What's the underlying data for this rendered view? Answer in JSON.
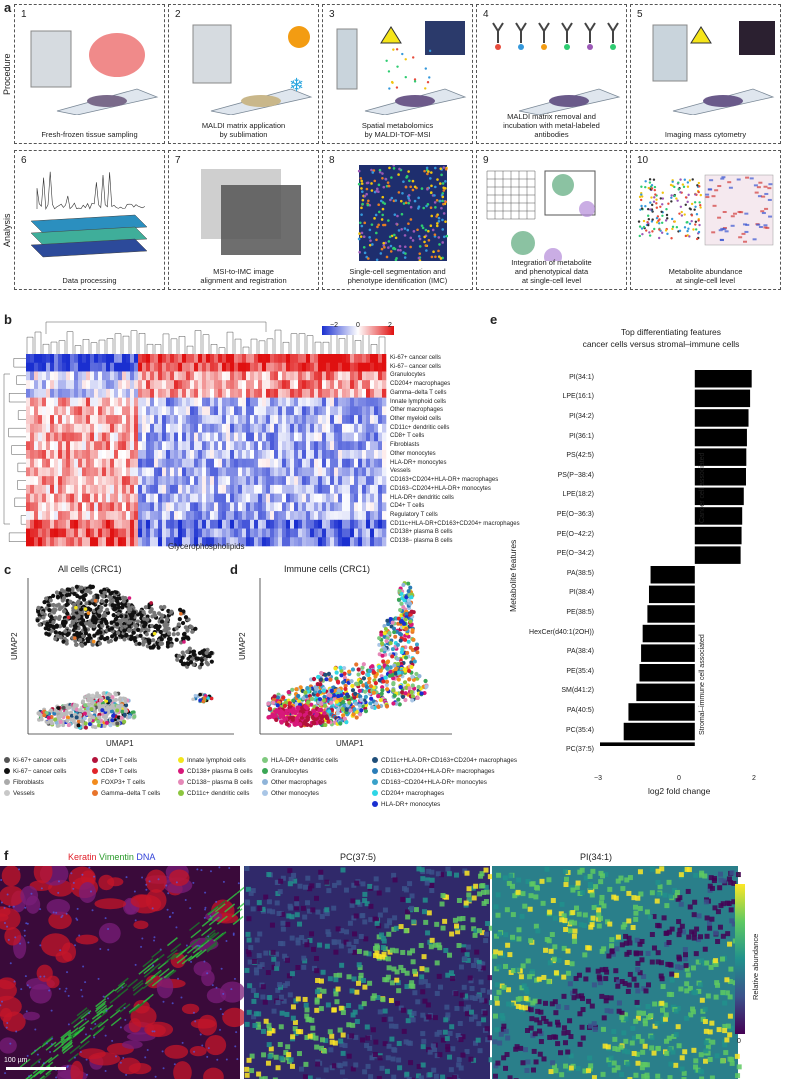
{
  "panel_a": {
    "letter": "a",
    "row_labels": [
      "Procedure",
      "Analysis"
    ],
    "steps": [
      {
        "n": "1",
        "caption": "Fresh-frozen tissue sampling"
      },
      {
        "n": "2",
        "caption": "MALDI matrix application\nby sublimation"
      },
      {
        "n": "3",
        "caption": "Spatial metabolomics\nby MALDI-TOF-MSI"
      },
      {
        "n": "4",
        "caption": "MALDI matrix removal and\nincubation with metal-labeled\nantibodies"
      },
      {
        "n": "5",
        "caption": "Imaging mass cytometry"
      },
      {
        "n": "6",
        "caption": "Data processing"
      },
      {
        "n": "7",
        "caption": "MSI-to-IMC image\nalignment and registration"
      },
      {
        "n": "8",
        "caption": "Single-cell segmentation and\nphenotype identification (IMC)"
      },
      {
        "n": "9",
        "caption": "Integration of metabolite\nand phenotypical data\nat single-cell level"
      },
      {
        "n": "10",
        "caption": "Metabolite abundance\nat single-cell level"
      }
    ]
  },
  "panel_b": {
    "letter": "b",
    "colorbar_ticks": [
      "−2",
      "0",
      "2"
    ],
    "xlabel": "Glycerophospholipids",
    "rows": [
      "Ki-67+ cancer cells",
      "Ki-67− cancer cells",
      "Granulocytes",
      "CD204+ macrophages",
      "Gamma–delta T cells",
      "Innate lymphoid cells",
      "Other macrophages",
      "Other myeloid cells",
      "CD11c+ dendritic cells",
      "CD8+ T cells",
      "Fibroblasts",
      "Other monocytes",
      "HLA-DR+ monocytes",
      "Vessels",
      "CD163+CD204+HLA-DR+ macrophages",
      "CD163−CD204+HLA-DR+ monocytes",
      "HLA-DR+ dendritic cells",
      "CD4+ T cells",
      "Regulatory T cells",
      "CD11c+HLA-DR+CD163+CD204+ macrophages",
      "CD138+ plasma B cells",
      "CD138− plasma B cells"
    ]
  },
  "panel_c": {
    "letter": "c",
    "title": "All cells (CRC1)",
    "xlabel": "UMAP1",
    "ylabel": "UMAP2"
  },
  "panel_d": {
    "letter": "d",
    "title": "Immune cells (CRC1)",
    "xlabel": "UMAP1",
    "ylabel": "UMAP2"
  },
  "legend": [
    {
      "label": "Ki-67+ cancer cells",
      "color": "#555555"
    },
    {
      "label": "Ki-67− cancer cells",
      "color": "#111111"
    },
    {
      "label": "Fibroblasts",
      "color": "#aaaaaa"
    },
    {
      "label": "Vessels",
      "color": "#c8c8c8"
    },
    {
      "label": "CD4+ T cells",
      "color": "#b3123a"
    },
    {
      "label": "CD8+ T cells",
      "color": "#e0242a"
    },
    {
      "label": "FOXP3+ T cells",
      "color": "#f28b1d"
    },
    {
      "label": "Gamma–delta T cells",
      "color": "#e8742b"
    },
    {
      "label": "Innate lymphoid cells",
      "color": "#f3e51b"
    },
    {
      "label": "CD138+ plasma B cells",
      "color": "#d8187a"
    },
    {
      "label": "CD138− plasma B cells",
      "color": "#e589b8"
    },
    {
      "label": "CD11c+ dendritic cells",
      "color": "#8dc63f"
    },
    {
      "label": "HLA-DR+ dendritic cells",
      "color": "#7fc97f"
    },
    {
      "label": "Granulocytes",
      "color": "#3aa655"
    },
    {
      "label": "Other macrophages",
      "color": "#8fb4d9"
    },
    {
      "label": "Other monocytes",
      "color": "#a9c6e6"
    },
    {
      "label": "CD11c+HLA-DR+CD163+CD204+ macrophages",
      "color": "#1f4e79"
    },
    {
      "label": "CD163+CD204+HLA-DR+ macrophages",
      "color": "#2a7db8"
    },
    {
      "label": "CD163−CD204+HLA-DR+ monocytes",
      "color": "#39a1c9"
    },
    {
      "label": "CD204+ macrophages",
      "color": "#2ed6e6"
    },
    {
      "label": "HLA-DR+ monocytes",
      "color": "#1a2fd0"
    }
  ],
  "panel_e": {
    "letter": "e",
    "title_line1": "Top differentiating features",
    "title_line2": "cancer cells versus stromal–immune cells",
    "ylabel": "Metabolite features",
    "xlabel": "log2 fold change",
    "group_pos": "Cancer cell associated",
    "group_neg": "Stromal–immune cell associated",
    "xticks": [
      "−3",
      "0",
      "2"
    ]
  },
  "chart_data": {
    "type": "bar",
    "orientation": "horizontal",
    "title": "Top differentiating features cancer cells versus stromal–immune cells",
    "xlabel": "log2 fold change",
    "ylabel": "Metabolite features",
    "xlim": [
      -3,
      2
    ],
    "categories": [
      "PI(34:1)",
      "LPE(16:1)",
      "PI(34:2)",
      "PI(36:1)",
      "PS(42:5)",
      "PS(P−38:4)",
      "LPE(18:2)",
      "PE(O−36:3)",
      "PE(O−42:2)",
      "PE(O−34:2)",
      "PA(38:5)",
      "PI(38:4)",
      "PE(38:5)",
      "HexCer(d40:1(2OH))",
      "PA(38:4)",
      "PE(35:4)",
      "SM(d41:2)",
      "PA(40:5)",
      "PC(35:4)",
      "PC(37:5)"
    ],
    "values": [
      1.8,
      1.75,
      1.7,
      1.65,
      1.63,
      1.62,
      1.55,
      1.5,
      1.48,
      1.45,
      -1.4,
      -1.45,
      -1.5,
      -1.65,
      -1.7,
      -1.75,
      -1.85,
      -2.1,
      -2.25,
      -3.0
    ]
  },
  "panel_f": {
    "letter": "f",
    "label_keratin": "Keratin",
    "label_vimentin": "Vimentin",
    "label_dna": "DNA",
    "title2": "PC(37:5)",
    "title3": "PI(34:1)",
    "scalebar": "100 µm",
    "cbar_label": "Relative abundance",
    "cbar_max": "1",
    "cbar_min": "0",
    "keratin_color": "#e0202a",
    "vimentin_color": "#2ecc40",
    "dna_color": "#3040d8"
  }
}
